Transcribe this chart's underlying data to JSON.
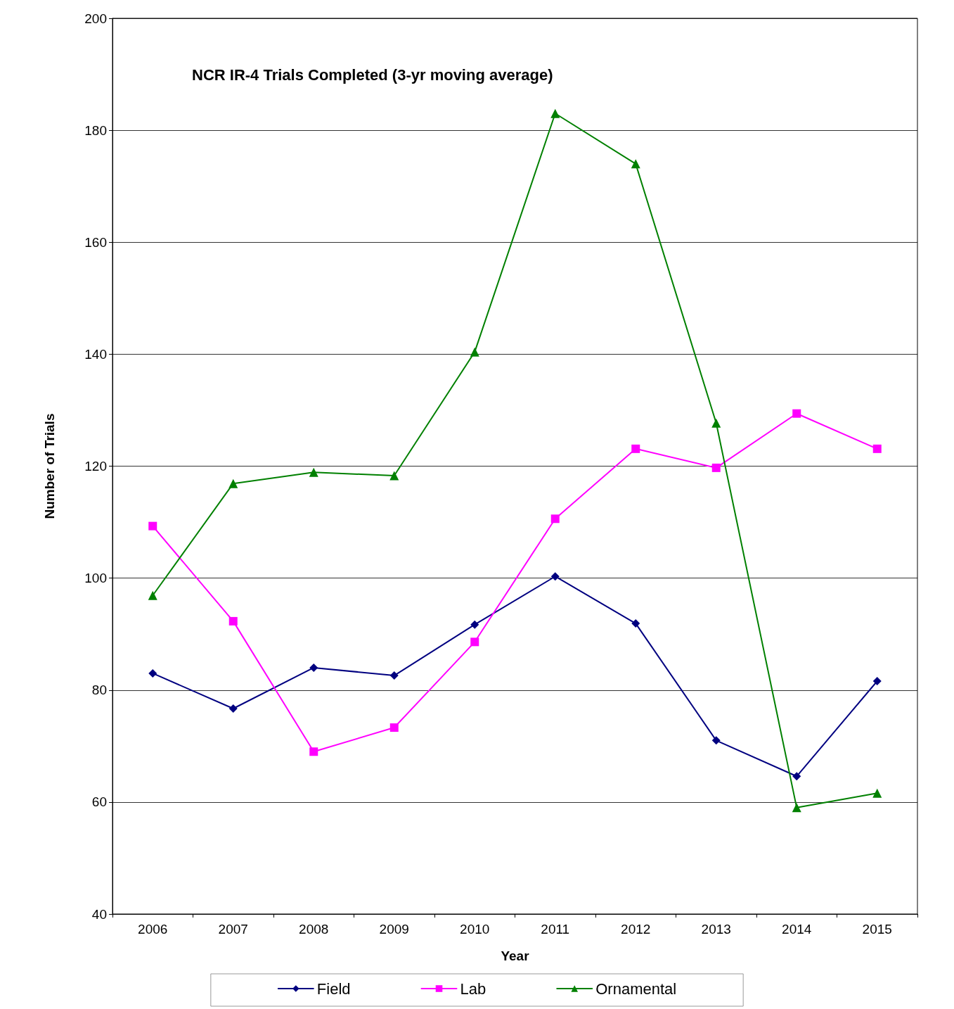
{
  "chart_data": {
    "type": "line",
    "title": "NCR IR-4 Trials Completed (3-yr moving average)",
    "xlabel": "Year",
    "ylabel": "Number of Trials",
    "categories": [
      "2006",
      "2007",
      "2008",
      "2009",
      "2010",
      "2011",
      "2012",
      "2013",
      "2014",
      "2015"
    ],
    "series": [
      {
        "name": "Field",
        "color": "#000080",
        "marker": "diamond",
        "values": [
          83.0,
          76.7,
          84.0,
          82.6,
          91.7,
          100.3,
          91.9,
          71.0,
          64.6,
          81.6
        ]
      },
      {
        "name": "Lab",
        "color": "#ff00ff",
        "marker": "square",
        "values": [
          109.3,
          92.3,
          69.0,
          73.3,
          88.6,
          110.6,
          123.1,
          119.7,
          129.4,
          123.1
        ]
      },
      {
        "name": "Ornamental",
        "color": "#008000",
        "marker": "triangle",
        "values": [
          96.9,
          116.9,
          118.9,
          118.3,
          140.4,
          183.0,
          174.0,
          127.7,
          59.0,
          61.6
        ]
      }
    ],
    "ylim": [
      40,
      200
    ],
    "yticks": [
      40,
      60,
      80,
      100,
      120,
      140,
      160,
      180,
      200
    ],
    "grid": "y",
    "legend": "bottom",
    "line_style": "solid"
  }
}
